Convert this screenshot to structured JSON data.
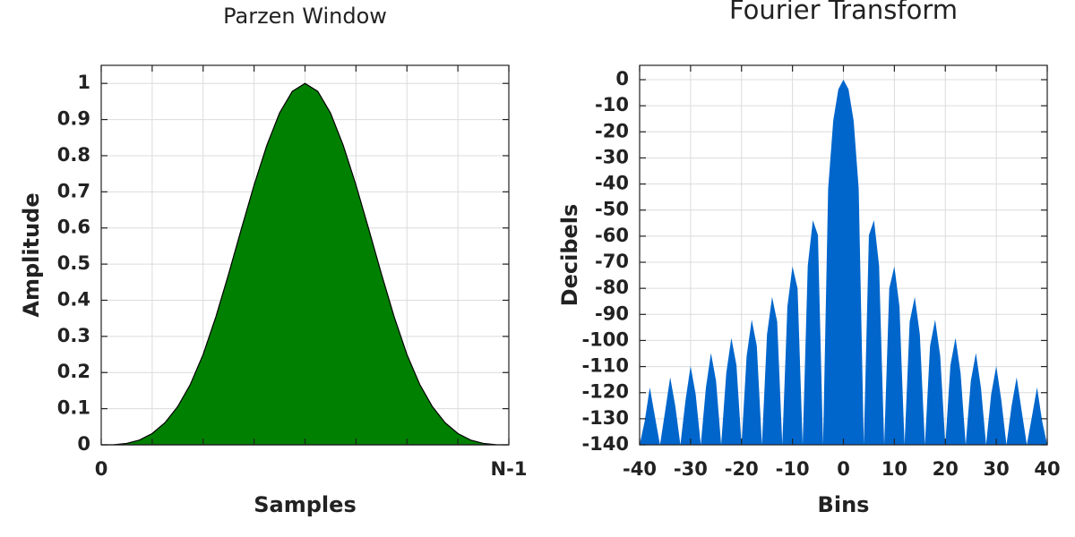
{
  "chart_data": [
    {
      "type": "area",
      "title": "Parzen Window",
      "xlabel": "Samples",
      "ylabel": "Amplitude",
      "x": [
        0,
        1,
        2,
        3,
        4,
        5,
        6,
        7,
        8,
        9,
        10,
        11,
        12,
        13,
        14,
        15,
        16,
        17,
        18,
        19,
        20,
        21,
        22,
        23,
        24,
        25,
        26,
        27,
        28,
        29,
        30,
        31,
        32
      ],
      "values": [
        0,
        0.0005,
        0.0039,
        0.0132,
        0.0313,
        0.061,
        0.1055,
        0.1675,
        0.25,
        0.354,
        0.4727,
        0.5972,
        0.7188,
        0.8286,
        0.918,
        0.978,
        1,
        0.978,
        0.918,
        0.8286,
        0.7188,
        0.5972,
        0.4727,
        0.354,
        0.25,
        0.1675,
        0.1055,
        0.061,
        0.0313,
        0.0132,
        0.0039,
        0.0005,
        0
      ],
      "color": "#008000",
      "outline": "#000000",
      "xlim": [
        0,
        32
      ],
      "xticks": [
        0,
        {
          "value": 4,
          "label": null
        },
        {
          "value": 8,
          "label": null
        },
        {
          "value": 12,
          "label": null
        },
        {
          "value": 16,
          "label": null
        },
        {
          "value": 20,
          "label": null
        },
        {
          "value": 24,
          "label": null
        },
        {
          "value": 28,
          "label": null
        },
        {
          "value": 32,
          "label": "N-1"
        }
      ],
      "ylim": [
        0,
        1.05
      ],
      "yticks": [
        0,
        0.1,
        0.2,
        0.3,
        0.4,
        0.5,
        0.6,
        0.7,
        0.8,
        0.9,
        1
      ],
      "grid": true
    },
    {
      "type": "area",
      "title": "Fourier Transform",
      "xlabel": "Bins",
      "ylabel": "Decibels",
      "x": [
        -40,
        -39,
        -38,
        -37,
        -36,
        -35,
        -34,
        -33,
        -32,
        -31,
        -30,
        -29,
        -28,
        -27,
        -26,
        -25,
        -24,
        -23,
        -22,
        -21,
        -20,
        -19,
        -18,
        -17,
        -16,
        -15,
        -14,
        -13,
        -12,
        -11,
        -10,
        -9,
        -8,
        -7,
        -6,
        -5,
        -4,
        -3,
        -2,
        -1,
        0,
        1,
        2,
        3,
        4,
        5,
        6,
        7,
        8,
        9,
        10,
        11,
        12,
        13,
        14,
        15,
        16,
        17,
        18,
        19,
        20,
        21,
        22,
        23,
        24,
        25,
        26,
        27,
        28,
        29,
        30,
        31,
        32,
        33,
        34,
        35,
        36,
        37,
        38,
        39,
        40
      ],
      "values": [
        -140,
        -130.9,
        -118,
        -129.1,
        -140,
        -127.2,
        -114.1,
        -125.1,
        -140,
        -123,
        -109.8,
        -120.6,
        -140,
        -118.2,
        -104.8,
        -115.5,
        -140,
        -112.6,
        -99,
        -109.4,
        -140,
        -106,
        -92,
        -102.1,
        -140,
        -97.7,
        -83.3,
        -92.8,
        -140,
        -87,
        -71.6,
        -80,
        -140,
        -71.3,
        -53.9,
        -59.6,
        -140,
        -41.8,
        -15.7,
        -3.7,
        0,
        -3.7,
        -15.7,
        -41.8,
        -140,
        -59.6,
        -53.9,
        -71.3,
        -140,
        -80,
        -71.6,
        -87,
        -140,
        -92.8,
        -83.3,
        -97.7,
        -140,
        -102.1,
        -92,
        -106,
        -140,
        -109.4,
        -99,
        -112.6,
        -140,
        -115.5,
        -104.8,
        -118.2,
        -140,
        -120.6,
        -109.8,
        -123,
        -140,
        -125.1,
        -114.1,
        -127.2,
        -140,
        -129.1,
        -118,
        -130.9,
        -140
      ],
      "color": "#0066cc",
      "xlim": [
        -40,
        40
      ],
      "xticks": [
        -40,
        -30,
        -20,
        -10,
        0,
        10,
        20,
        30,
        40
      ],
      "ylim": [
        -140,
        5.5
      ],
      "yticks": [
        0,
        -10,
        -20,
        -30,
        -40,
        -50,
        -60,
        -70,
        -80,
        -90,
        -100,
        -110,
        -120,
        -130,
        -140
      ],
      "grid": true
    }
  ]
}
